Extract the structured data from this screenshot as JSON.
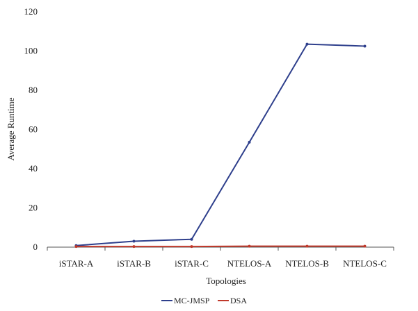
{
  "chart_data": {
    "type": "line",
    "categories": [
      "iSTAR-A",
      "iSTAR-B",
      "iSTAR-C",
      "NTELOS-A",
      "NTELOS-B",
      "NTELOS-C"
    ],
    "series": [
      {
        "name": "MC-JMSP",
        "color": "#2e3f8c",
        "values": [
          0.8,
          3,
          4,
          53.5,
          103.5,
          102.5
        ]
      },
      {
        "name": "DSA",
        "color": "#c0392b",
        "values": [
          0.3,
          0.3,
          0.3,
          0.5,
          0.5,
          0.5
        ]
      }
    ],
    "title": "",
    "xlabel": "Topologies",
    "ylabel": "Average Runtime",
    "ylim": [
      0,
      120
    ],
    "yticks": [
      0,
      20,
      40,
      60,
      80,
      100,
      120
    ],
    "grid": false,
    "legend_position": "bottom-center"
  }
}
